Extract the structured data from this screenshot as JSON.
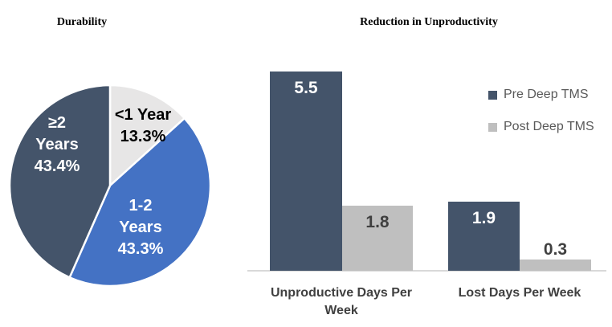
{
  "chart_data": [
    {
      "type": "pie",
      "title": "Durability",
      "start_angle_deg": 0,
      "direction": "clockwise",
      "slices": [
        {
          "label": "<1 Year",
          "pct_label": "13.3%",
          "value": 13.3,
          "color": "#E7E6E6",
          "text_color": "#000000"
        },
        {
          "label": "1-2 Years",
          "pct_label": "43.3%",
          "value": 43.3,
          "color": "#4472C4",
          "text_color": "#FFFFFF"
        },
        {
          "label": "≥2 Years",
          "pct_label": "43.4%",
          "value": 43.4,
          "color": "#44546A",
          "text_color": "#FFFFFF"
        }
      ],
      "slice_border_color": "#FFFFFF"
    },
    {
      "type": "bar",
      "title": "Reduction in Unproductivity",
      "categories": [
        "Unproductive Days Per Week",
        "Lost Days Per Week"
      ],
      "series": [
        {
          "name": "Pre Deep TMS",
          "color": "#44546A",
          "values": [
            5.5,
            1.9
          ],
          "labels": [
            "5.5",
            "1.9"
          ],
          "label_color": "#FFFFFF"
        },
        {
          "name": "Post Deep TMS",
          "color": "#BFBFBF",
          "values": [
            1.8,
            0.3
          ],
          "labels": [
            "1.8",
            "0.3"
          ],
          "label_color": "#404040"
        }
      ],
      "ylim": [
        0,
        5.5
      ],
      "gridlines": false,
      "legend_position": "right",
      "axis_line_color": "#D9D9D9",
      "category_label_color": "#404040",
      "legend_text_color": "#595959"
    }
  ]
}
